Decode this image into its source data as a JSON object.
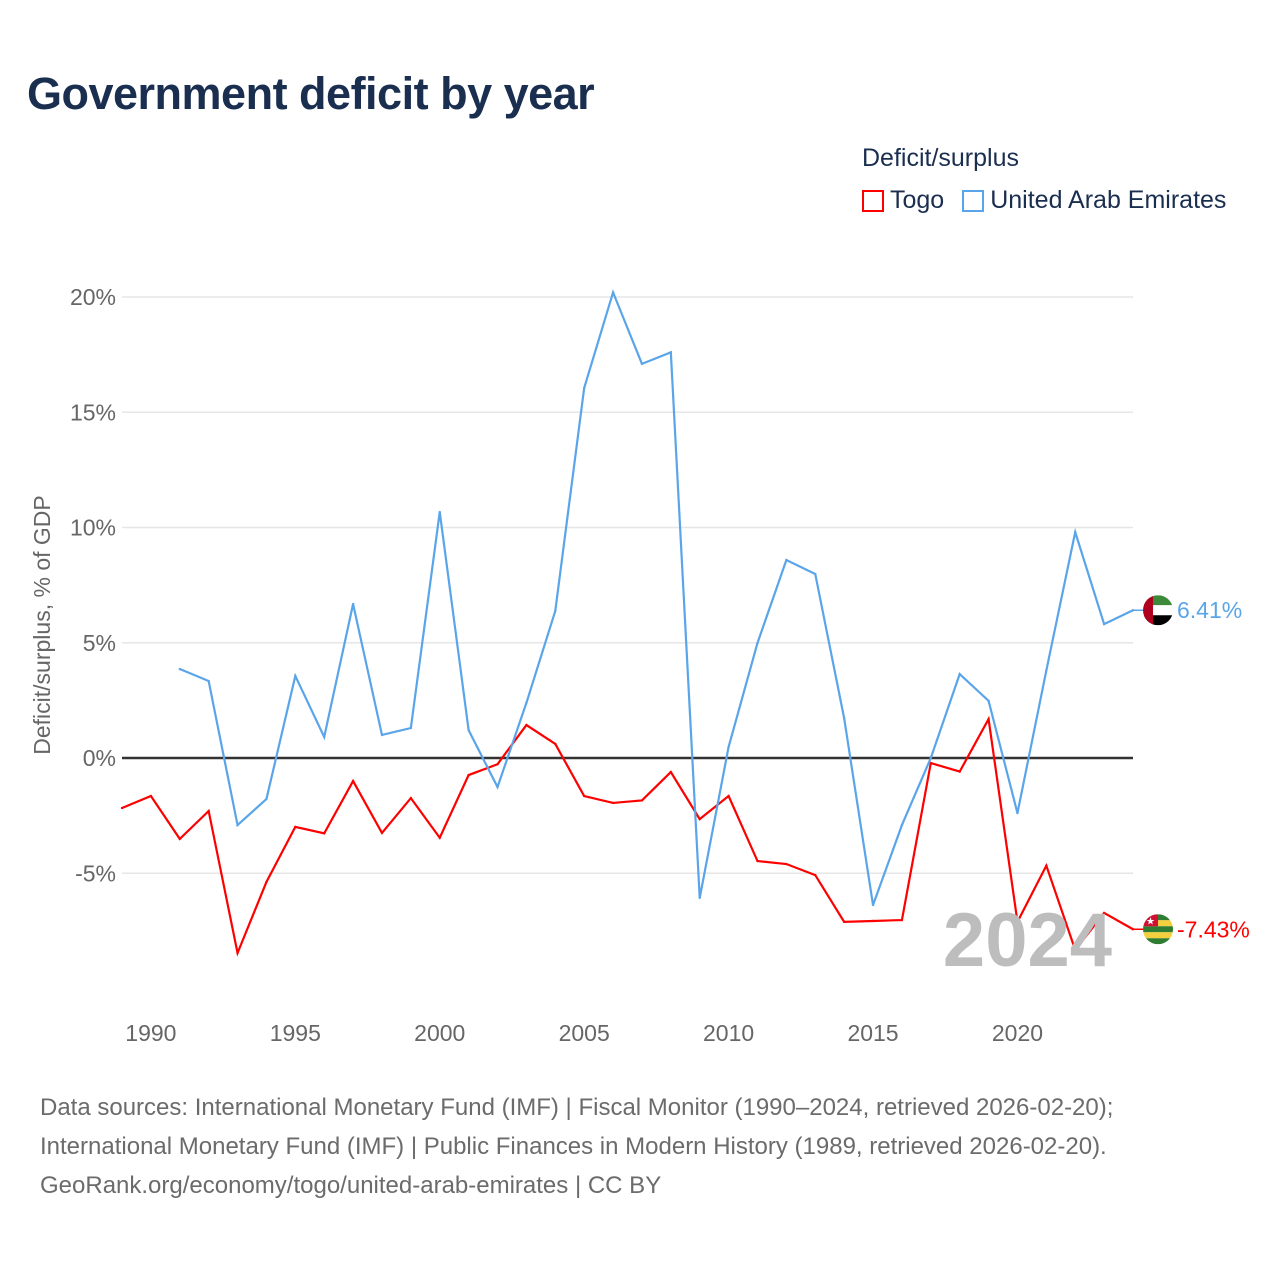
{
  "chart_data": {
    "type": "line",
    "title": "Government deficit by year",
    "ylabel": "Deficit/surplus, % of GDP",
    "xlabel": "",
    "legend_title": "Deficit/surplus",
    "legend_placement": "top-right",
    "xlim": [
      1989,
      2024
    ],
    "ylim": [
      -10,
      20
    ],
    "x_ticks": [
      1990,
      1995,
      2000,
      2005,
      2010,
      2015,
      2020
    ],
    "y_ticks": [
      20,
      15,
      10,
      5,
      0,
      -5
    ],
    "y_tick_labels": [
      "20%",
      "15%",
      "10%",
      "5%",
      "0%",
      "-5%"
    ],
    "grid": true,
    "watermark_year": "2024",
    "series": [
      {
        "name": "Togo",
        "color": "#ff0000",
        "end_label": "-7.43%",
        "x": [
          1989,
          1990,
          1991,
          1992,
          1993,
          1994,
          1995,
          1996,
          1997,
          1998,
          1999,
          2000,
          2001,
          2002,
          2003,
          2004,
          2005,
          2006,
          2007,
          2008,
          2009,
          2010,
          2011,
          2012,
          2013,
          2014,
          2015,
          2016,
          2017,
          2018,
          2019,
          2020,
          2021,
          2022,
          2023,
          2024
        ],
        "values": [
          -2.17,
          -1.65,
          -3.51,
          -2.3,
          -8.46,
          -5.38,
          -2.99,
          -3.27,
          -1.0,
          -3.25,
          -1.74,
          -3.46,
          -0.74,
          -0.27,
          1.43,
          0.61,
          -1.65,
          -1.95,
          -1.84,
          -0.61,
          -2.65,
          -1.65,
          -4.47,
          -4.6,
          -5.08,
          -7.11,
          -7.07,
          -7.03,
          -0.22,
          -0.59,
          1.69,
          -7.11,
          -4.67,
          -8.33,
          -6.72,
          -7.43
        ]
      },
      {
        "name": "United Arab Emirates",
        "color": "#5aa5ea",
        "end_label": "6.41%",
        "x": [
          1991,
          1992,
          1993,
          1994,
          1995,
          1996,
          1997,
          1998,
          1999,
          2000,
          2001,
          2002,
          2003,
          2004,
          2005,
          2006,
          2007,
          2008,
          2009,
          2010,
          2011,
          2012,
          2013,
          2014,
          2015,
          2016,
          2017,
          2018,
          2019,
          2020,
          2021,
          2022,
          2023,
          2024
        ],
        "values": [
          3.86,
          3.34,
          -2.91,
          -1.78,
          3.56,
          0.91,
          6.68,
          1.0,
          1.3,
          10.67,
          1.21,
          -1.26,
          2.39,
          6.38,
          16.05,
          20.2,
          17.1,
          17.6,
          -6.07,
          0.48,
          4.99,
          8.59,
          7.98,
          1.73,
          -6.38,
          -2.91,
          0.0,
          3.64,
          2.48,
          -2.39,
          3.8,
          9.8,
          5.81,
          6.41
        ]
      }
    ]
  },
  "footer": {
    "line1": "Data sources: International Monetary Fund (IMF) | Fiscal Monitor (1990–2024, retrieved 2026-02-20);",
    "line2": "International Monetary Fund (IMF) | Public Finances in Modern History (1989, retrieved 2026-02-20).",
    "line3": "GeoRank.org/economy/togo/united-arab-emirates | CC BY"
  }
}
